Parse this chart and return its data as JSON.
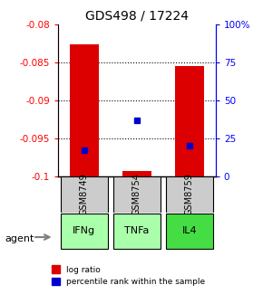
{
  "title": "GDS498 / 17224",
  "samples": [
    "GSM8749",
    "GSM8754",
    "GSM8759"
  ],
  "agents": [
    "IFNg",
    "TNFa",
    "IL4"
  ],
  "log_ratios": [
    -0.0826,
    -0.0993,
    -0.0855
  ],
  "percentile_ranks": [
    17,
    37,
    20
  ],
  "ylim_left": [
    -0.1,
    -0.08
  ],
  "ylim_right": [
    0,
    100
  ],
  "yticks_left": [
    -0.1,
    -0.095,
    -0.09,
    -0.085,
    -0.08
  ],
  "yticks_right": [
    0,
    25,
    50,
    75,
    100
  ],
  "ytick_labels_left": [
    "-0.1",
    "-0.095",
    "-0.09",
    "-0.085",
    "-0.08"
  ],
  "ytick_labels_right": [
    "0",
    "25",
    "50",
    "75",
    "100%"
  ],
  "bar_color": "#dd0000",
  "rank_color": "#0000cc",
  "agent_colors": [
    "#aaffaa",
    "#aaffaa",
    "#44dd44"
  ],
  "sample_box_color": "#cccccc",
  "background_color": "#ffffff",
  "legend_log_ratio": "log ratio",
  "legend_percentile": "percentile rank within the sample",
  "agent_label": "agent"
}
